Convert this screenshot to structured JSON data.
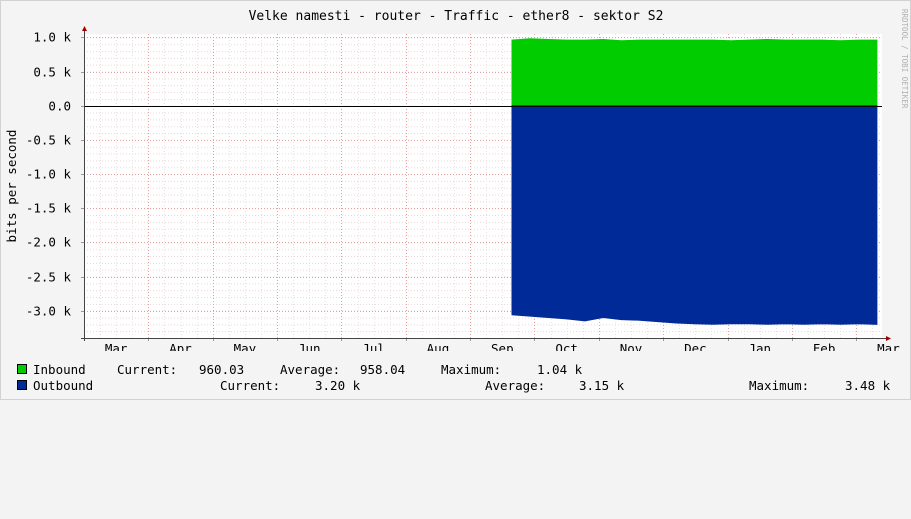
{
  "chart_data": {
    "type": "area",
    "title": "Velke namesti - router - Traffic - ether8 - sektor S2",
    "ylabel": "bits per second",
    "watermark": "RRDTOOL / TOBI OETIKER",
    "ylim": [
      -3.4,
      1.05
    ],
    "y_unit": "k",
    "y_ticks": [
      {
        "value": 1.0,
        "label": "1.0 k"
      },
      {
        "value": 0.5,
        "label": "0.5 k"
      },
      {
        "value": 0.0,
        "label": "0.0"
      },
      {
        "value": -0.5,
        "label": "-0.5 k"
      },
      {
        "value": -1.0,
        "label": "-1.0 k"
      },
      {
        "value": -1.5,
        "label": "-1.5 k"
      },
      {
        "value": -2.0,
        "label": "-2.0 k"
      },
      {
        "value": -2.5,
        "label": "-2.5 k"
      },
      {
        "value": -3.0,
        "label": "-3.0 k"
      }
    ],
    "x_ticks": [
      "Mar",
      "Apr",
      "May",
      "Jun",
      "Jul",
      "Aug",
      "Sep",
      "Oct",
      "Nov",
      "Dec",
      "Jan",
      "Feb",
      "Mar"
    ],
    "x_range_months": [
      0,
      12.4
    ],
    "data_start_month": 6.65,
    "series": [
      {
        "name": "Inbound",
        "color": "#00cc00",
        "sign": 1,
        "values": [
          0.96,
          0.98,
          0.97,
          0.96,
          0.96,
          0.97,
          0.95,
          0.96,
          0.96,
          0.96,
          0.96,
          0.96,
          0.95,
          0.96,
          0.97,
          0.96,
          0.96,
          0.96,
          0.95,
          0.96,
          0.96
        ],
        "current": "960.03",
        "average": "958.04",
        "maximum": "1.04 k"
      },
      {
        "name": "Outbound",
        "color": "#002a97",
        "sign": -1,
        "values": [
          3.06,
          3.08,
          3.1,
          3.12,
          3.15,
          3.1,
          3.13,
          3.14,
          3.16,
          3.18,
          3.19,
          3.2,
          3.19,
          3.19,
          3.2,
          3.19,
          3.2,
          3.19,
          3.2,
          3.19,
          3.2
        ],
        "current": "3.20 k",
        "average": "3.15 k",
        "maximum": "3.48 k"
      }
    ]
  },
  "legend": {
    "current_label": "Current:",
    "average_label": "Average:",
    "maximum_label": "Maximum:"
  }
}
